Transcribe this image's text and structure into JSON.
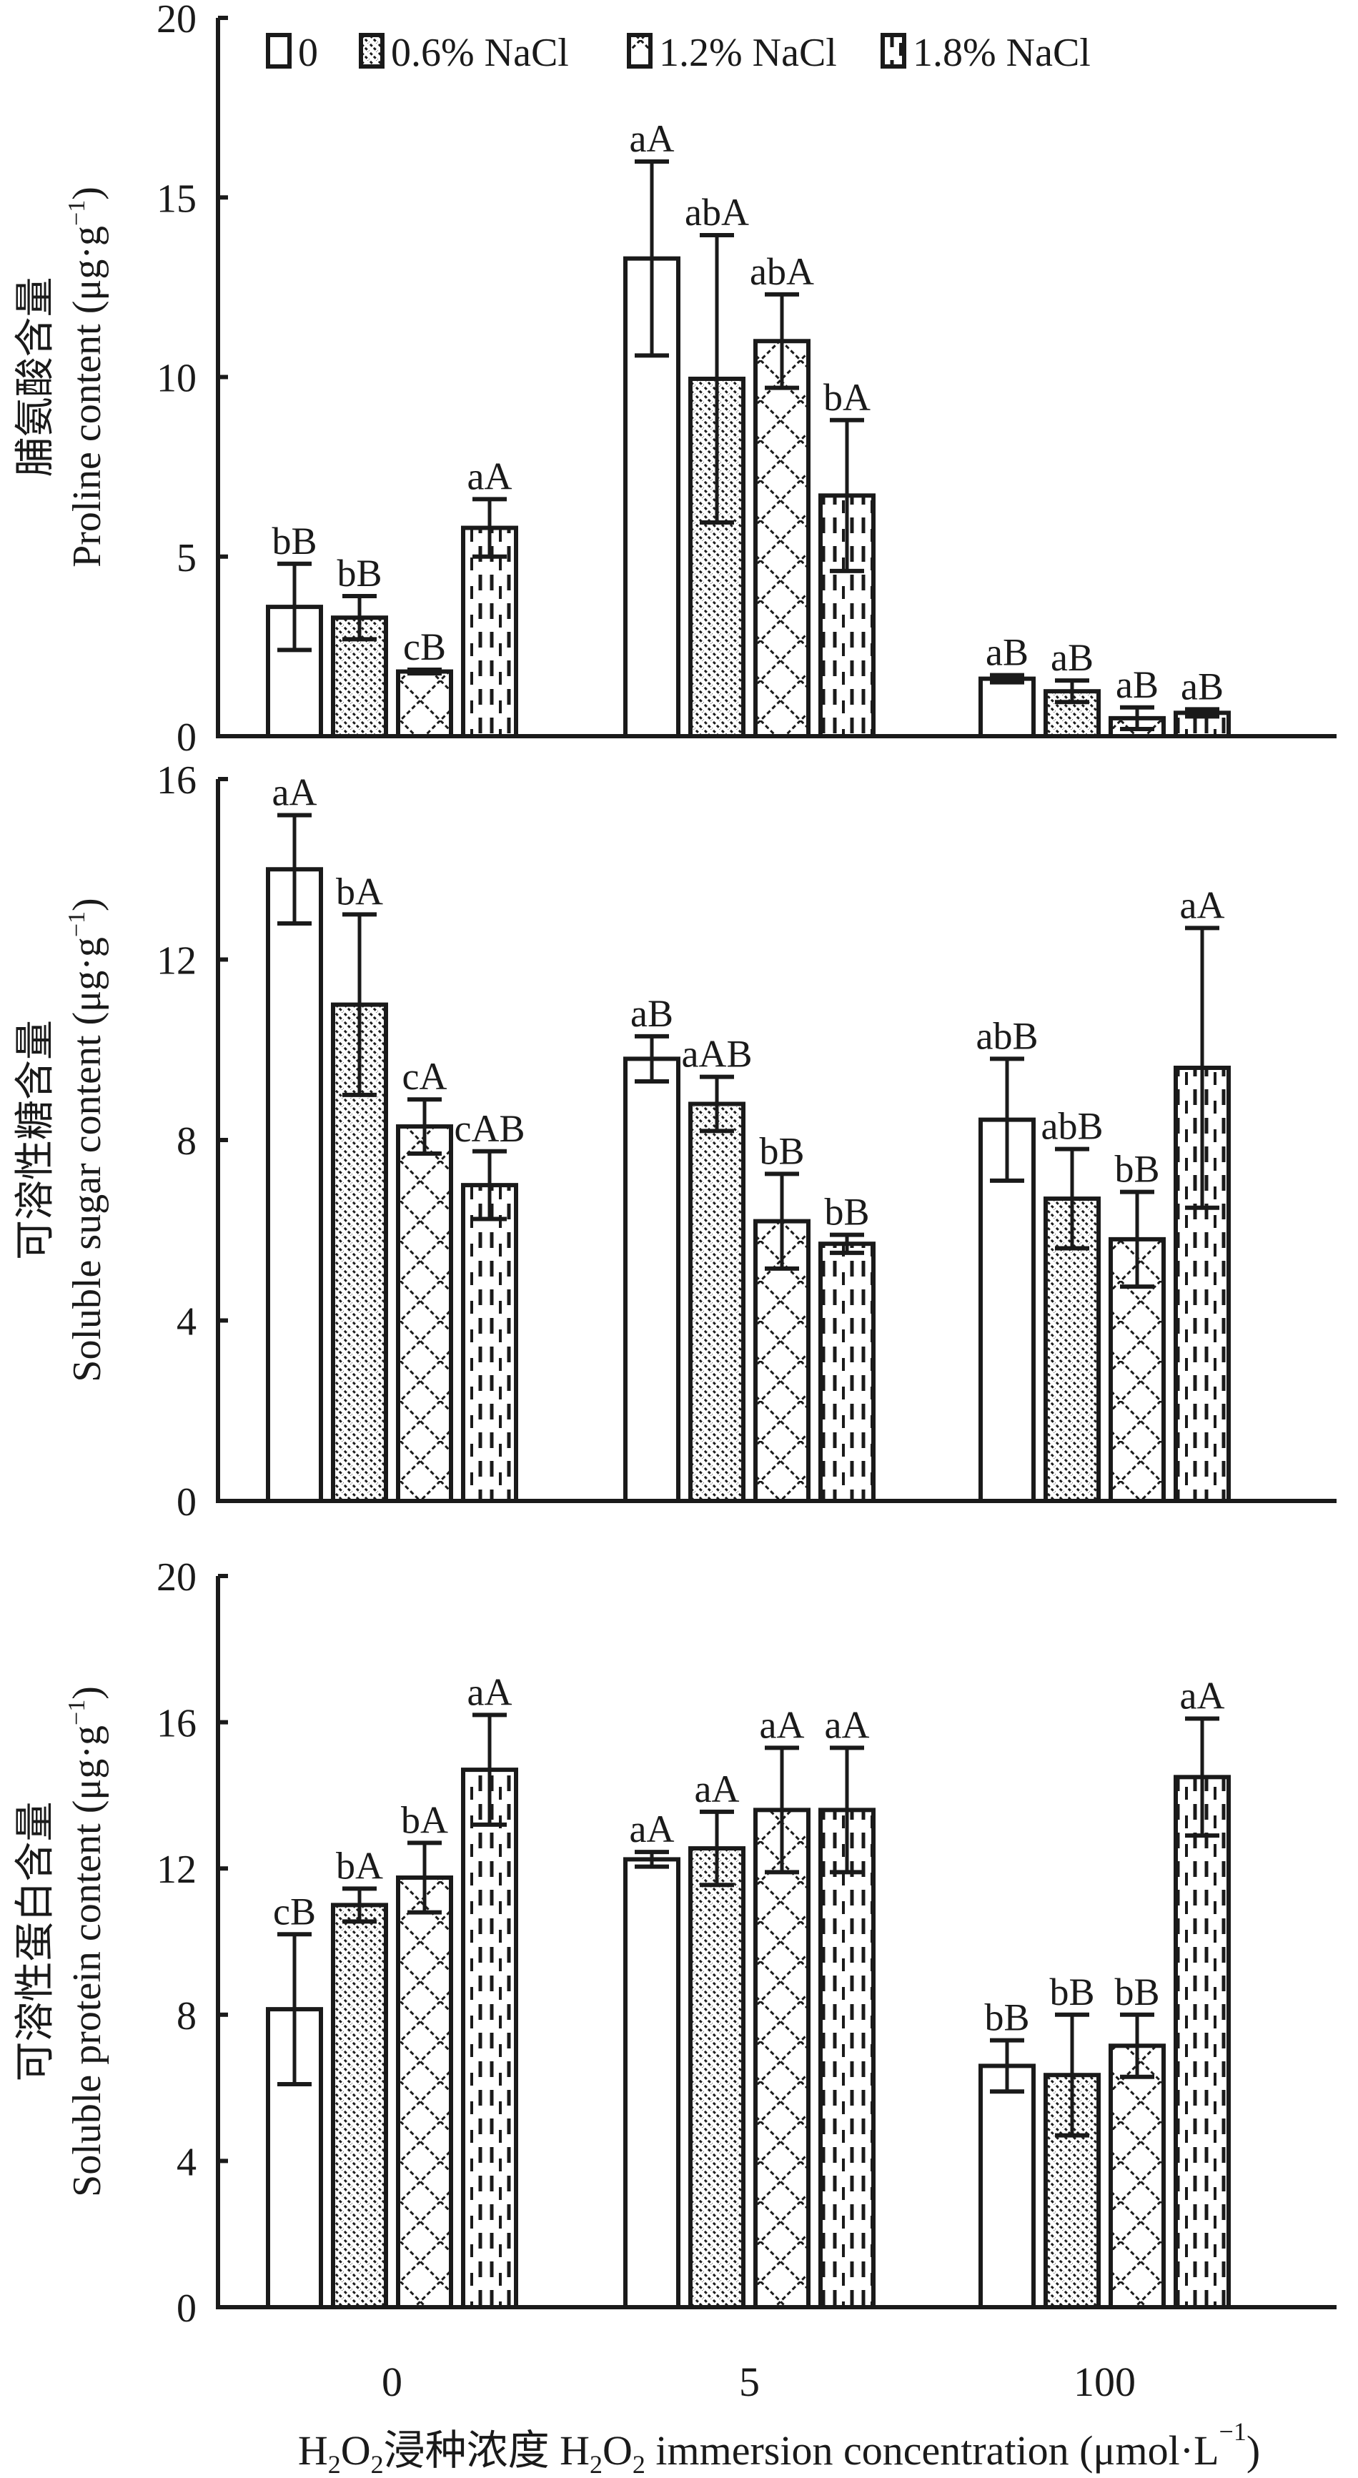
{
  "chart_data": {
    "type": "bar",
    "categories": [
      "0",
      "5",
      "100"
    ],
    "xlabel": {
      "cn_prefix": "H",
      "parts": [
        "H",
        "2",
        "O",
        "2",
        "浸种浓度 H",
        "2",
        "O",
        "2",
        " immersion concentration (μmol·L",
        "−1",
        ")"
      ],
      "full": "H2O2浸种浓度 H2O2 immersion concentration (μmol·L−1)"
    },
    "legend": {
      "placement": "top",
      "entries": [
        "0",
        "0.6% NaCl",
        "1.2% NaCl",
        "1.8% NaCl"
      ]
    },
    "series_patterns": [
      "empty",
      "dense-diagonal",
      "cross-hatch",
      "dashed-vertical"
    ],
    "panels": [
      {
        "ylabel_cn": "脯氨酸含量",
        "ylabel_en": "Proline content (μg·g",
        "ylabel_sup": "−1",
        "ylabel_close": ")",
        "ylim": [
          0,
          20
        ],
        "yticks": [
          "0",
          "5",
          "10",
          "15",
          "20"
        ],
        "series": [
          {
            "name": "0",
            "values": [
              3.6,
              13.3,
              1.6
            ],
            "errors": [
              1.2,
              2.7,
              0.1
            ],
            "labels": [
              "bB",
              "aA",
              "aB"
            ]
          },
          {
            "name": "0.6% NaCl",
            "values": [
              3.3,
              9.95,
              1.25
            ],
            "errors": [
              0.6,
              4.0,
              0.3
            ],
            "labels": [
              "bB",
              "abA",
              "aB"
            ]
          },
          {
            "name": "1.2% NaCl",
            "values": [
              1.8,
              11.0,
              0.5
            ],
            "errors": [
              0.05,
              1.3,
              0.3
            ],
            "labels": [
              "cB",
              "abA",
              "aB"
            ]
          },
          {
            "name": "1.8% NaCl",
            "values": [
              5.8,
              6.7,
              0.65
            ],
            "errors": [
              0.8,
              2.1,
              0.1
            ],
            "labels": [
              "aA",
              "bA",
              "aB"
            ]
          }
        ]
      },
      {
        "ylabel_cn": "可溶性糖含量",
        "ylabel_en": "Soluble sugar content (μg·g",
        "ylabel_sup": "−1",
        "ylabel_close": ")",
        "ylim": [
          0,
          16
        ],
        "yticks": [
          "0",
          "4",
          "8",
          "12",
          "16"
        ],
        "series": [
          {
            "name": "0",
            "values": [
              14.0,
              9.8,
              8.45
            ],
            "errors": [
              1.2,
              0.5,
              1.35
            ],
            "labels": [
              "aA",
              "aB",
              "abB"
            ]
          },
          {
            "name": "0.6% NaCl",
            "values": [
              11.0,
              8.8,
              6.7
            ],
            "errors": [
              2.0,
              0.6,
              1.1
            ],
            "labels": [
              "bA",
              "aAB",
              "abB"
            ]
          },
          {
            "name": "1.2% NaCl",
            "values": [
              8.3,
              6.2,
              5.8
            ],
            "errors": [
              0.6,
              1.05,
              1.05
            ],
            "labels": [
              "cA",
              "bB",
              "bB"
            ]
          },
          {
            "name": "1.8% NaCl",
            "values": [
              7.0,
              5.7,
              9.6
            ],
            "errors": [
              0.75,
              0.2,
              3.1
            ],
            "labels": [
              "cAB",
              "bB",
              "aA"
            ]
          }
        ]
      },
      {
        "ylabel_cn": "可溶性蛋白含量",
        "ylabel_en": "Soluble protein content (μg·g",
        "ylabel_sup": "−1",
        "ylabel_close": ")",
        "ylim": [
          0,
          20
        ],
        "yticks": [
          "0",
          "4",
          "8",
          "12",
          "16",
          "20"
        ],
        "series": [
          {
            "name": "0",
            "values": [
              8.15,
              12.25,
              6.6
            ],
            "errors": [
              2.05,
              0.2,
              0.7
            ],
            "labels": [
              "cB",
              "aA",
              "bB"
            ]
          },
          {
            "name": "0.6% NaCl",
            "values": [
              11.0,
              12.55,
              6.35
            ],
            "errors": [
              0.45,
              1.0,
              1.65
            ],
            "labels": [
              "bA",
              "aA",
              "bB"
            ]
          },
          {
            "name": "1.2% NaCl",
            "values": [
              11.75,
              13.6,
              7.15
            ],
            "errors": [
              0.95,
              1.7,
              0.85
            ],
            "labels": [
              "bA",
              "aA",
              "bB"
            ]
          },
          {
            "name": "1.8% NaCl",
            "values": [
              14.7,
              13.6,
              14.5
            ],
            "errors": [
              1.5,
              1.7,
              1.6
            ],
            "labels": [
              "aA",
              "aA",
              "aA"
            ]
          }
        ]
      }
    ]
  },
  "colors": {
    "ink": "#1a1a1a",
    "background": "#ffffff"
  }
}
